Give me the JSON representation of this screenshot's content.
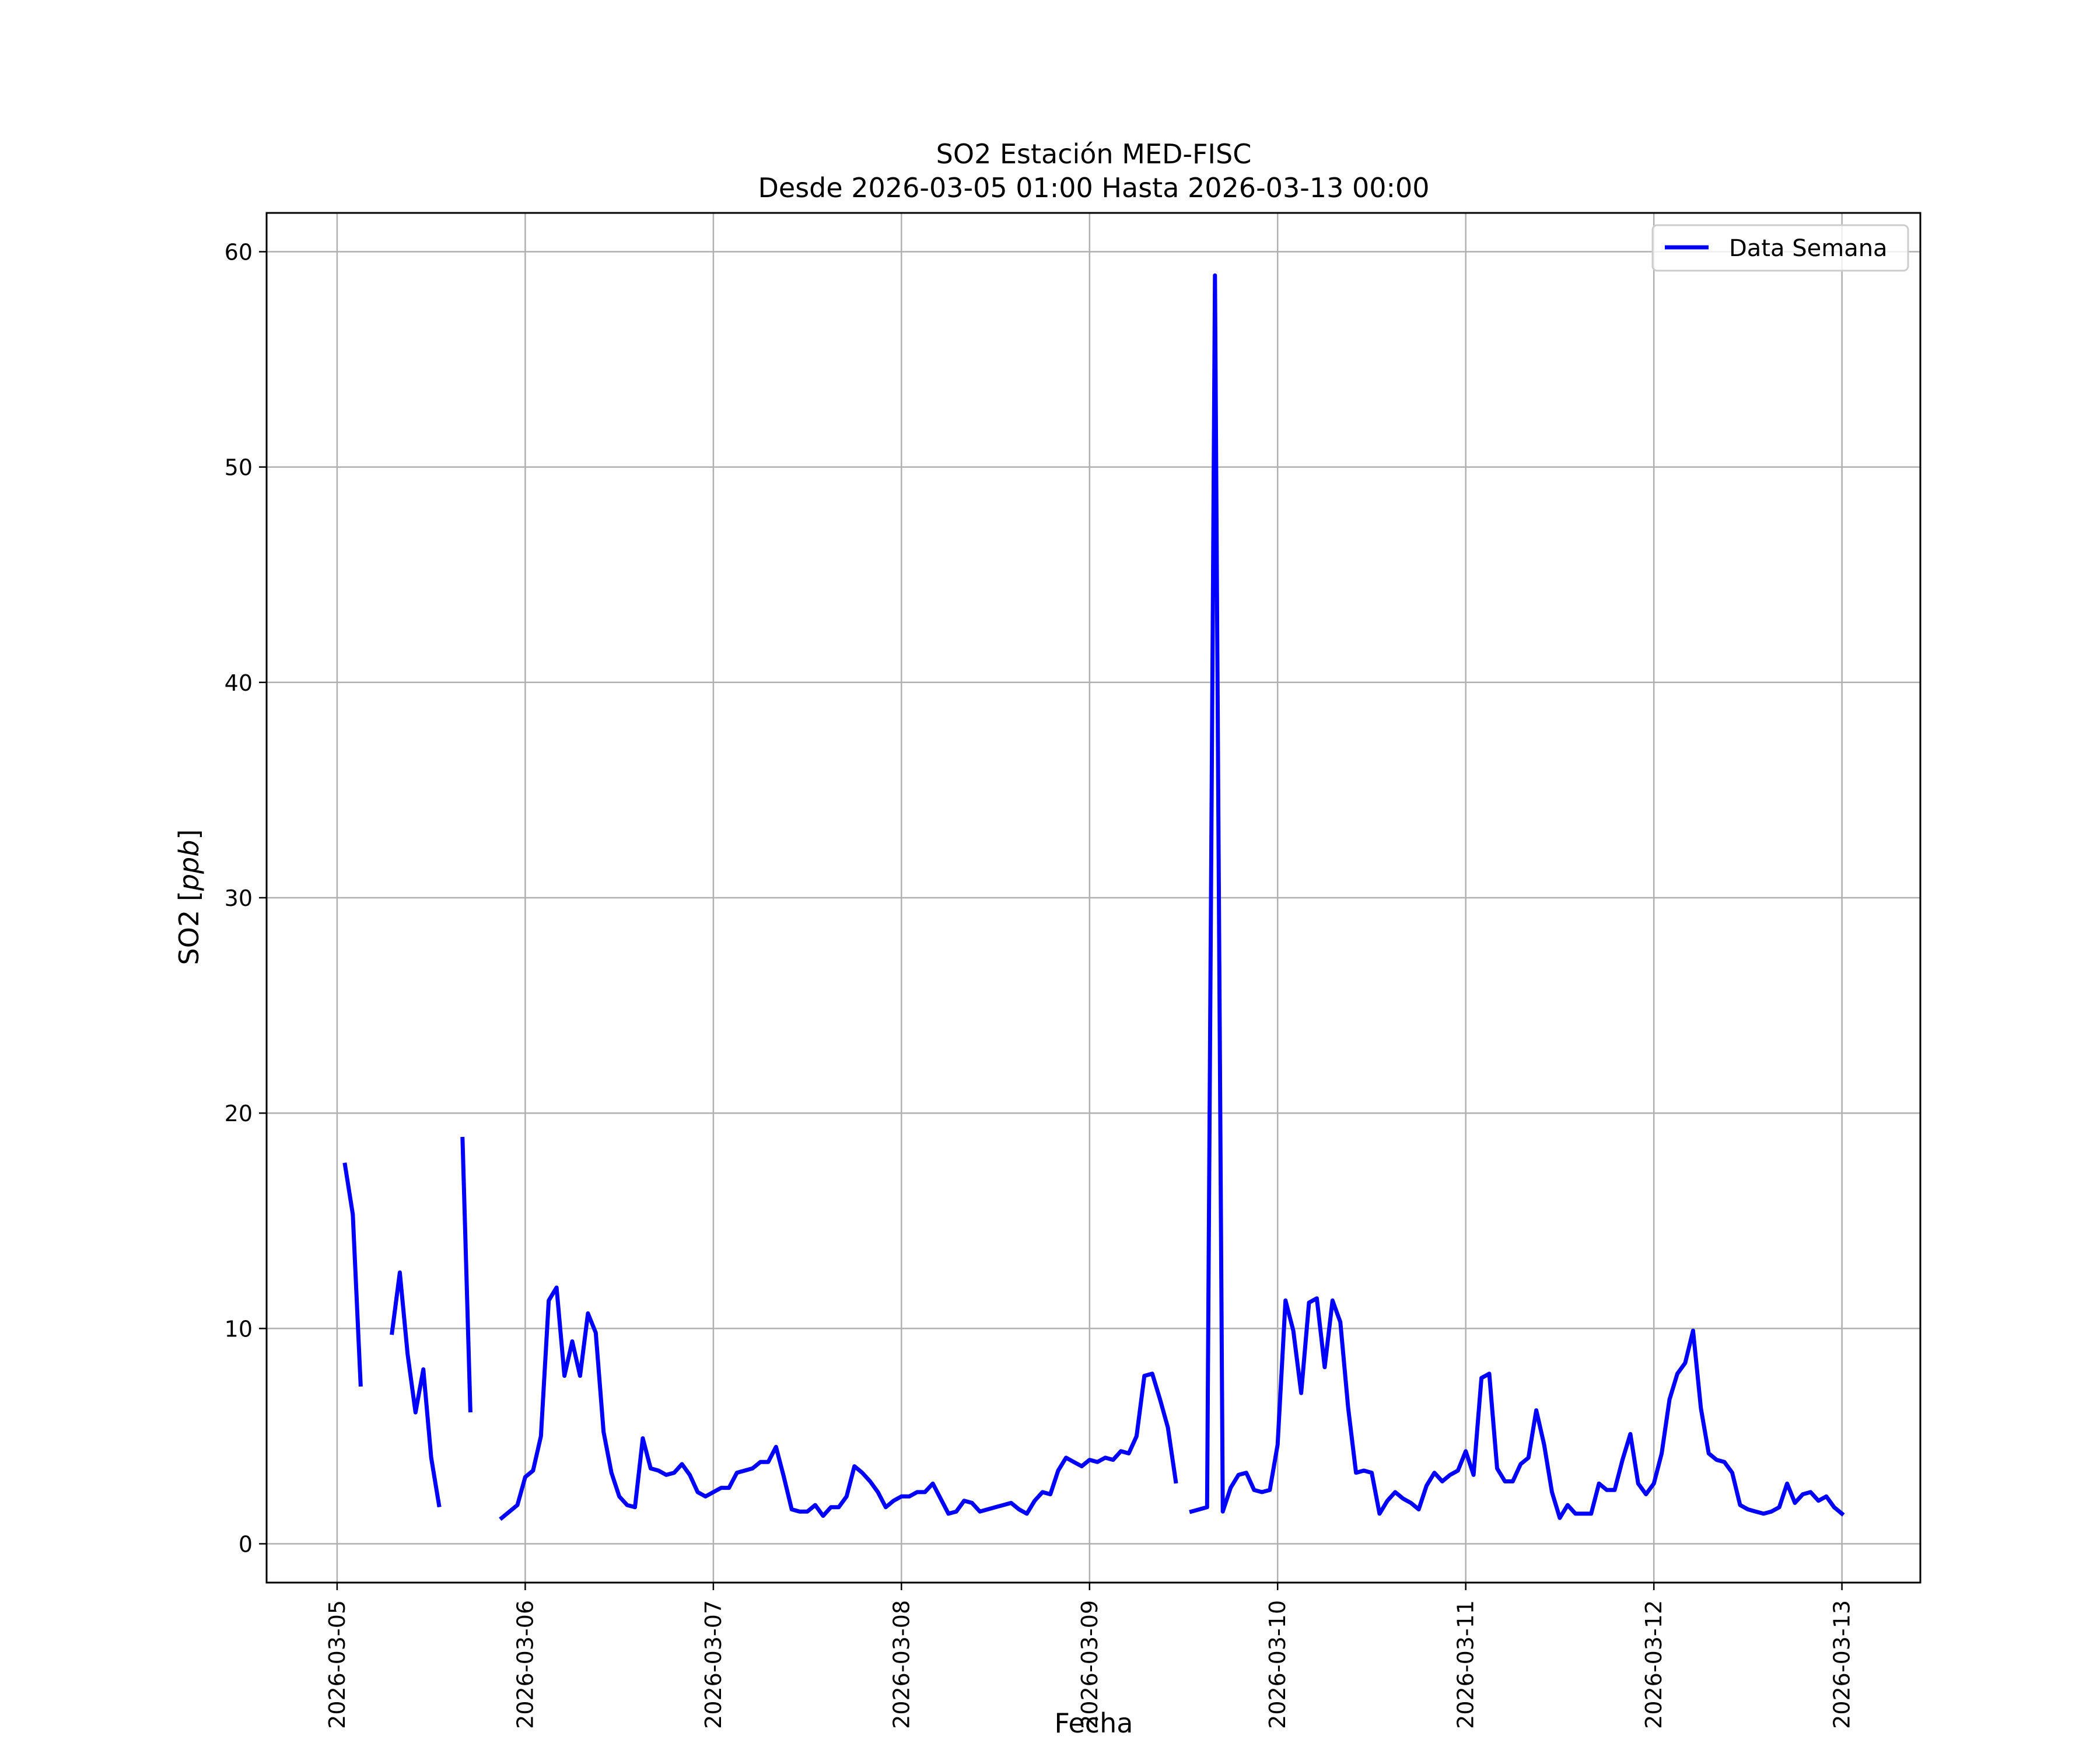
{
  "chart_data": {
    "type": "line",
    "title": "SO2 Estación MED-FISC",
    "subtitle": "Desde 2026-03-05 01:00 Hasta 2026-03-13 00:00",
    "xlabel": "Fecha",
    "ylabel_text": "SO2 [",
    "ylabel_unit": "ppb",
    "ylabel_close": "]",
    "xlim": [
      "2026-03-04 15:00",
      "2026-03-13 10:00"
    ],
    "ylim": [
      -1.8,
      61.8
    ],
    "x_ticks": [
      "2026-03-05",
      "2026-03-06",
      "2026-03-07",
      "2026-03-08",
      "2026-03-09",
      "2026-03-10",
      "2026-03-11",
      "2026-03-12",
      "2026-03-13"
    ],
    "y_ticks": [
      0,
      10,
      20,
      30,
      40,
      50,
      60
    ],
    "grid": true,
    "legend_position": "top-right",
    "series": [
      {
        "name": "Data Semana",
        "color": "#0000ff",
        "segments": [
          [
            [
              "2026-03-05 01:00",
              17.6
            ],
            [
              "2026-03-05 02:00",
              15.3
            ],
            [
              "2026-03-05 03:00",
              7.4
            ]
          ],
          [
            [
              "2026-03-05 07:00",
              9.8
            ],
            [
              "2026-03-05 08:00",
              12.6
            ],
            [
              "2026-03-05 09:00",
              8.8
            ],
            [
              "2026-03-05 10:00",
              6.1
            ],
            [
              "2026-03-05 11:00",
              8.1
            ],
            [
              "2026-03-05 12:00",
              4.0
            ],
            [
              "2026-03-05 13:00",
              1.8
            ]
          ],
          [
            [
              "2026-03-05 16:00",
              18.8
            ],
            [
              "2026-03-05 17:00",
              6.2
            ]
          ],
          [
            [
              "2026-03-05 21:00",
              1.2
            ],
            [
              "2026-03-05 22:00",
              1.5
            ],
            [
              "2026-03-05 23:00",
              1.8
            ],
            [
              "2026-03-06 00:00",
              3.1
            ],
            [
              "2026-03-06 01:00",
              3.4
            ],
            [
              "2026-03-06 02:00",
              5.0
            ],
            [
              "2026-03-06 03:00",
              11.3
            ],
            [
              "2026-03-06 04:00",
              11.9
            ],
            [
              "2026-03-06 05:00",
              7.8
            ],
            [
              "2026-03-06 06:00",
              9.4
            ],
            [
              "2026-03-06 07:00",
              7.8
            ],
            [
              "2026-03-06 08:00",
              10.7
            ],
            [
              "2026-03-06 09:00",
              9.8
            ],
            [
              "2026-03-06 10:00",
              5.2
            ],
            [
              "2026-03-06 11:00",
              3.3
            ],
            [
              "2026-03-06 12:00",
              2.2
            ],
            [
              "2026-03-06 13:00",
              1.8
            ],
            [
              "2026-03-06 14:00",
              1.7
            ],
            [
              "2026-03-06 15:00",
              4.9
            ],
            [
              "2026-03-06 16:00",
              3.5
            ],
            [
              "2026-03-06 17:00",
              3.4
            ],
            [
              "2026-03-06 18:00",
              3.2
            ],
            [
              "2026-03-06 19:00",
              3.3
            ],
            [
              "2026-03-06 20:00",
              3.7
            ],
            [
              "2026-03-06 21:00",
              3.2
            ],
            [
              "2026-03-06 22:00",
              2.4
            ],
            [
              "2026-03-06 23:00",
              2.2
            ],
            [
              "2026-03-07 00:00",
              2.4
            ],
            [
              "2026-03-07 01:00",
              2.6
            ],
            [
              "2026-03-07 02:00",
              2.6
            ],
            [
              "2026-03-07 03:00",
              3.3
            ],
            [
              "2026-03-07 04:00",
              3.4
            ],
            [
              "2026-03-07 05:00",
              3.5
            ],
            [
              "2026-03-07 06:00",
              3.8
            ],
            [
              "2026-03-07 07:00",
              3.8
            ],
            [
              "2026-03-07 08:00",
              4.5
            ],
            [
              "2026-03-07 09:00",
              3.1
            ],
            [
              "2026-03-07 10:00",
              1.6
            ],
            [
              "2026-03-07 11:00",
              1.5
            ],
            [
              "2026-03-07 12:00",
              1.5
            ],
            [
              "2026-03-07 13:00",
              1.8
            ],
            [
              "2026-03-07 14:00",
              1.3
            ],
            [
              "2026-03-07 15:00",
              1.7
            ],
            [
              "2026-03-07 16:00",
              1.7
            ],
            [
              "2026-03-07 17:00",
              2.2
            ],
            [
              "2026-03-07 18:00",
              3.6
            ],
            [
              "2026-03-07 19:00",
              3.3
            ],
            [
              "2026-03-07 20:00",
              2.9
            ],
            [
              "2026-03-07 21:00",
              2.4
            ],
            [
              "2026-03-07 22:00",
              1.7
            ],
            [
              "2026-03-07 23:00",
              2.0
            ],
            [
              "2026-03-08 00:00",
              2.2
            ],
            [
              "2026-03-08 01:00",
              2.2
            ],
            [
              "2026-03-08 02:00",
              2.4
            ],
            [
              "2026-03-08 03:00",
              2.4
            ],
            [
              "2026-03-08 04:00",
              2.8
            ],
            [
              "2026-03-08 05:00",
              2.1
            ],
            [
              "2026-03-08 06:00",
              1.4
            ],
            [
              "2026-03-08 07:00",
              1.5
            ],
            [
              "2026-03-08 08:00",
              2.0
            ],
            [
              "2026-03-08 09:00",
              1.9
            ],
            [
              "2026-03-08 10:00",
              1.5
            ],
            [
              "2026-03-08 11:00",
              1.6
            ],
            [
              "2026-03-08 12:00",
              1.7
            ],
            [
              "2026-03-08 13:00",
              1.8
            ],
            [
              "2026-03-08 14:00",
              1.9
            ],
            [
              "2026-03-08 15:00",
              1.6
            ],
            [
              "2026-03-08 16:00",
              1.4
            ],
            [
              "2026-03-08 17:00",
              2.0
            ],
            [
              "2026-03-08 18:00",
              2.4
            ],
            [
              "2026-03-08 19:00",
              2.3
            ],
            [
              "2026-03-08 20:00",
              3.4
            ],
            [
              "2026-03-08 21:00",
              4.0
            ],
            [
              "2026-03-08 22:00",
              3.8
            ],
            [
              "2026-03-08 23:00",
              3.6
            ],
            [
              "2026-03-09 00:00",
              3.9
            ],
            [
              "2026-03-09 01:00",
              3.8
            ],
            [
              "2026-03-09 02:00",
              4.0
            ],
            [
              "2026-03-09 03:00",
              3.9
            ],
            [
              "2026-03-09 04:00",
              4.3
            ],
            [
              "2026-03-09 05:00",
              4.2
            ],
            [
              "2026-03-09 06:00",
              5.0
            ],
            [
              "2026-03-09 07:00",
              7.8
            ],
            [
              "2026-03-09 08:00",
              7.9
            ],
            [
              "2026-03-09 09:00",
              6.7
            ],
            [
              "2026-03-09 10:00",
              5.4
            ],
            [
              "2026-03-09 11:00",
              2.9
            ]
          ],
          [
            [
              "2026-03-09 13:00",
              1.5
            ],
            [
              "2026-03-09 14:00",
              1.6
            ],
            [
              "2026-03-09 15:00",
              1.7
            ],
            [
              "2026-03-09 16:00",
              58.9
            ],
            [
              "2026-03-09 17:00",
              1.5
            ],
            [
              "2026-03-09 18:00",
              2.6
            ],
            [
              "2026-03-09 19:00",
              3.2
            ],
            [
              "2026-03-09 20:00",
              3.3
            ],
            [
              "2026-03-09 21:00",
              2.5
            ],
            [
              "2026-03-09 22:00",
              2.4
            ],
            [
              "2026-03-09 23:00",
              2.5
            ],
            [
              "2026-03-10 00:00",
              4.6
            ],
            [
              "2026-03-10 01:00",
              11.3
            ],
            [
              "2026-03-10 02:00",
              9.9
            ],
            [
              "2026-03-10 03:00",
              7.0
            ],
            [
              "2026-03-10 04:00",
              11.2
            ],
            [
              "2026-03-10 05:00",
              11.4
            ],
            [
              "2026-03-10 06:00",
              8.2
            ],
            [
              "2026-03-10 07:00",
              11.3
            ],
            [
              "2026-03-10 08:00",
              10.3
            ],
            [
              "2026-03-10 09:00",
              6.3
            ],
            [
              "2026-03-10 10:00",
              3.3
            ],
            [
              "2026-03-10 11:00",
              3.4
            ],
            [
              "2026-03-10 12:00",
              3.3
            ],
            [
              "2026-03-10 13:00",
              1.4
            ],
            [
              "2026-03-10 14:00",
              2.0
            ],
            [
              "2026-03-10 15:00",
              2.4
            ],
            [
              "2026-03-10 16:00",
              2.1
            ],
            [
              "2026-03-10 17:00",
              1.9
            ],
            [
              "2026-03-10 18:00",
              1.6
            ],
            [
              "2026-03-10 19:00",
              2.7
            ],
            [
              "2026-03-10 20:00",
              3.3
            ],
            [
              "2026-03-10 21:00",
              2.9
            ],
            [
              "2026-03-10 22:00",
              3.2
            ],
            [
              "2026-03-10 23:00",
              3.4
            ],
            [
              "2026-03-11 00:00",
              4.3
            ],
            [
              "2026-03-11 01:00",
              3.2
            ],
            [
              "2026-03-11 02:00",
              7.7
            ],
            [
              "2026-03-11 03:00",
              7.9
            ],
            [
              "2026-03-11 04:00",
              3.5
            ],
            [
              "2026-03-11 05:00",
              2.9
            ],
            [
              "2026-03-11 06:00",
              2.9
            ],
            [
              "2026-03-11 07:00",
              3.7
            ],
            [
              "2026-03-11 08:00",
              4.0
            ],
            [
              "2026-03-11 09:00",
              6.2
            ],
            [
              "2026-03-11 10:00",
              4.6
            ],
            [
              "2026-03-11 11:00",
              2.4
            ],
            [
              "2026-03-11 12:00",
              1.2
            ],
            [
              "2026-03-11 13:00",
              1.8
            ],
            [
              "2026-03-11 14:00",
              1.4
            ],
            [
              "2026-03-11 15:00",
              1.4
            ],
            [
              "2026-03-11 16:00",
              1.4
            ],
            [
              "2026-03-11 17:00",
              2.8
            ],
            [
              "2026-03-11 18:00",
              2.5
            ],
            [
              "2026-03-11 19:00",
              2.5
            ],
            [
              "2026-03-11 20:00",
              3.9
            ],
            [
              "2026-03-11 21:00",
              5.1
            ],
            [
              "2026-03-11 22:00",
              2.8
            ],
            [
              "2026-03-11 23:00",
              2.3
            ],
            [
              "2026-03-12 00:00",
              2.8
            ],
            [
              "2026-03-12 01:00",
              4.2
            ],
            [
              "2026-03-12 02:00",
              6.7
            ],
            [
              "2026-03-12 03:00",
              7.9
            ],
            [
              "2026-03-12 04:00",
              8.4
            ],
            [
              "2026-03-12 05:00",
              9.9
            ],
            [
              "2026-03-12 06:00",
              6.3
            ],
            [
              "2026-03-12 07:00",
              4.2
            ],
            [
              "2026-03-12 08:00",
              3.9
            ],
            [
              "2026-03-12 09:00",
              3.8
            ],
            [
              "2026-03-12 10:00",
              3.3
            ],
            [
              "2026-03-12 11:00",
              1.8
            ],
            [
              "2026-03-12 12:00",
              1.6
            ],
            [
              "2026-03-12 13:00",
              1.5
            ],
            [
              "2026-03-12 14:00",
              1.4
            ],
            [
              "2026-03-12 15:00",
              1.5
            ],
            [
              "2026-03-12 16:00",
              1.7
            ],
            [
              "2026-03-12 17:00",
              2.8
            ],
            [
              "2026-03-12 18:00",
              1.9
            ],
            [
              "2026-03-12 19:00",
              2.3
            ],
            [
              "2026-03-12 20:00",
              2.4
            ],
            [
              "2026-03-12 21:00",
              2.0
            ],
            [
              "2026-03-12 22:00",
              2.2
            ],
            [
              "2026-03-12 23:00",
              1.7
            ],
            [
              "2026-03-13 00:00",
              1.4
            ]
          ]
        ]
      }
    ]
  }
}
